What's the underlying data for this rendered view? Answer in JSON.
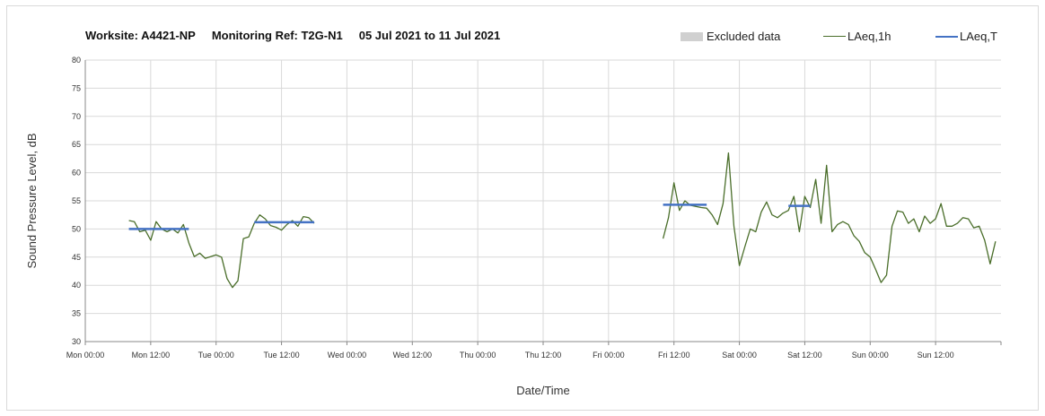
{
  "header": {
    "worksite": "Worksite: A4421-NP",
    "monitoring_ref": "Monitoring Ref: T2G-N1",
    "date_range": "05 Jul 2021 to 11 Jul 2021"
  },
  "legend": {
    "excluded": "Excluded data",
    "laeq_1h": "LAeq,1h",
    "laeq_t": "LAeq,T"
  },
  "chart_data": {
    "type": "line",
    "xlabel": "Date/Time",
    "ylabel": "Sound Pressure Level, dB",
    "ylim": [
      30,
      80
    ],
    "yticks": [
      30,
      35,
      40,
      45,
      50,
      55,
      60,
      65,
      70,
      75,
      80
    ],
    "xlim_hours": [
      0,
      168
    ],
    "xticks": [
      "Mon 00:00",
      "Mon 12:00",
      "Tue 00:00",
      "Tue 12:00",
      "Wed 00:00",
      "Wed 12:00",
      "Thu 00:00",
      "Thu 12:00",
      "Fri 00:00",
      "Fri 12:00",
      "Sat 00:00",
      "Sat 12:00",
      "Sun 00:00",
      "Sun 12:00"
    ],
    "grid": true,
    "legend_position": "top-right",
    "colors": {
      "laeq_1h": "#4a6e2a",
      "laeq_t": "#4472c4",
      "excluded": "#d0d0d0"
    },
    "series": [
      {
        "name": "LAeq,1h",
        "segments": [
          {
            "x": [
              8,
              9,
              10,
              11,
              12,
              13,
              14,
              15,
              16,
              17,
              18,
              19,
              20,
              21,
              22,
              23,
              24,
              25,
              26,
              27,
              28,
              29,
              30,
              31,
              32,
              33,
              34,
              35,
              36,
              37,
              38,
              39,
              40,
              41,
              42
            ],
            "y": [
              51.5,
              51.3,
              49.5,
              49.8,
              48.0,
              51.3,
              50.0,
              49.5,
              50.0,
              49.3,
              50.8,
              47.5,
              45.1,
              45.7,
              44.8,
              45.1,
              45.4,
              45.0,
              41.2,
              39.6,
              40.8,
              48.3,
              48.6,
              51.0,
              52.5,
              51.8,
              50.6,
              50.3,
              49.8,
              50.8,
              51.5,
              50.5,
              52.2,
              52.0,
              51.0
            ]
          },
          {
            "x": [
              106,
              107,
              108,
              109,
              110,
              111,
              112,
              113,
              114,
              115,
              116,
              117,
              118,
              119,
              120,
              121,
              122,
              123,
              124,
              125,
              126,
              127,
              128,
              129,
              130,
              131,
              132,
              133,
              134,
              135,
              136,
              137,
              138,
              139,
              140,
              141,
              142,
              143,
              144,
              145,
              146,
              147,
              148,
              149,
              150,
              151,
              152,
              153,
              154,
              155,
              156,
              157,
              158,
              159,
              160,
              161,
              162,
              163,
              164,
              165,
              166,
              167
            ],
            "y": [
              48.3,
              52.0,
              58.2,
              53.3,
              55.0,
              54.2,
              54.0,
              53.8,
              53.7,
              52.5,
              50.8,
              54.5,
              63.5,
              50.5,
              43.5,
              46.8,
              50.0,
              49.5,
              53.0,
              54.8,
              52.5,
              52.0,
              52.8,
              53.3,
              55.8,
              49.5,
              55.8,
              53.8,
              58.8,
              51.0,
              61.3,
              49.5,
              50.8,
              51.3,
              50.8,
              48.8,
              47.8,
              45.8,
              45.0,
              42.8,
              40.5,
              41.8,
              50.5,
              53.2,
              53.0,
              51.0,
              51.8,
              49.5,
              52.3,
              51.0,
              51.8,
              54.5,
              50.5,
              50.5,
              51.0,
              52.0,
              51.8,
              50.2,
              50.5,
              48.0,
              43.8,
              47.8
            ]
          }
        ]
      },
      {
        "name": "LAeq,T",
        "segments": [
          {
            "x": [
              8,
              19
            ],
            "y": [
              50.0,
              50.0
            ]
          },
          {
            "x": [
              31,
              42
            ],
            "y": [
              51.2,
              51.2
            ]
          },
          {
            "x": [
              106,
              114
            ],
            "y": [
              54.3,
              54.3
            ]
          },
          {
            "x": [
              129,
              133
            ],
            "y": [
              54.1,
              54.1
            ]
          }
        ]
      }
    ]
  }
}
